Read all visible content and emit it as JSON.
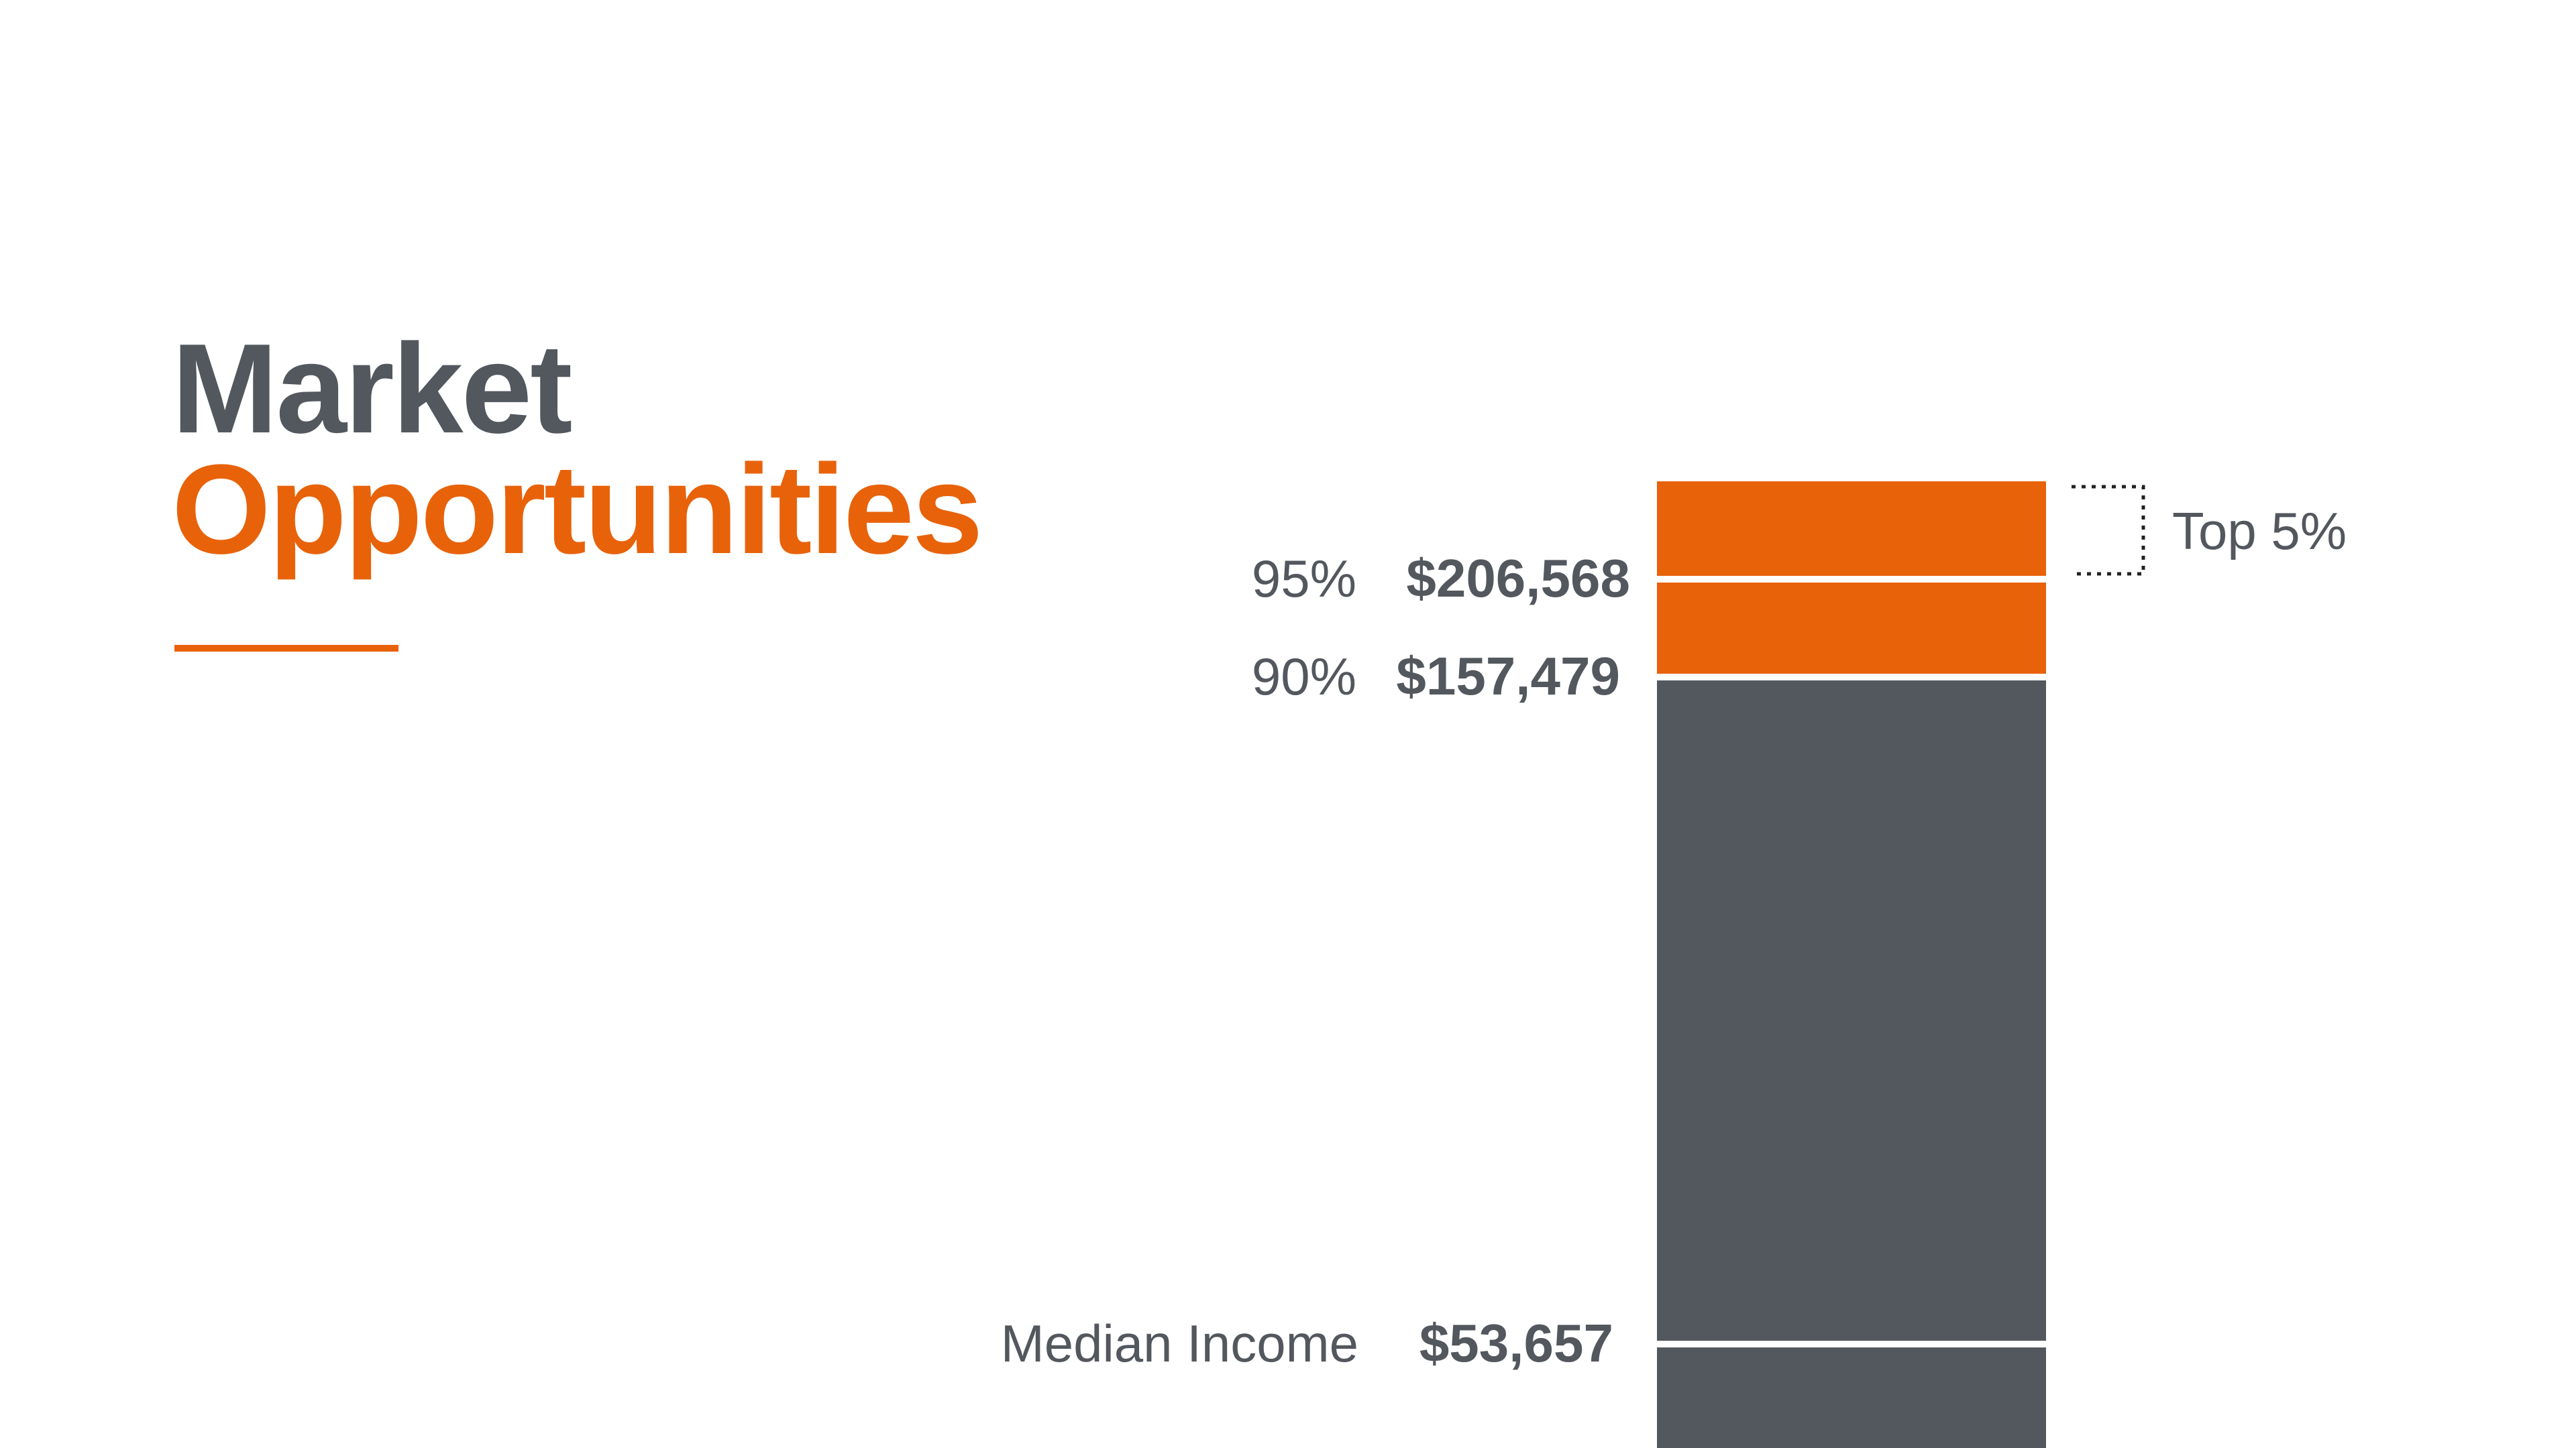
{
  "slide": {
    "title_line1": "Market",
    "title_line2": "Opportunities"
  },
  "colors": {
    "accent": "#E8620A",
    "dark": "#53575E",
    "text": "#53575E",
    "divider": "#FFFFFF"
  },
  "chart_data": {
    "type": "bar",
    "title": "",
    "xlabel": "",
    "ylabel": "",
    "segments": [
      {
        "name": "",
        "value_bottom": 0,
        "value_top": 53657,
        "color": "dark"
      },
      {
        "name": "",
        "value_bottom": 53657,
        "value_top": 157479,
        "color": "dark"
      },
      {
        "name": "",
        "value_bottom": 157479,
        "value_top": 206568,
        "color": "accent"
      },
      {
        "name": "",
        "value_bottom": 206568,
        "value_top": 236000,
        "color": "accent"
      }
    ],
    "markers": [
      {
        "percentile": "95%",
        "value": 206568,
        "value_label": "$206,568"
      },
      {
        "percentile": "90%",
        "value": 157479,
        "value_label": "$157,479"
      },
      {
        "percentile": "Median Income",
        "value": 53657,
        "value_label": "$53,657"
      }
    ],
    "bracket": {
      "label": "Top 5%"
    }
  }
}
